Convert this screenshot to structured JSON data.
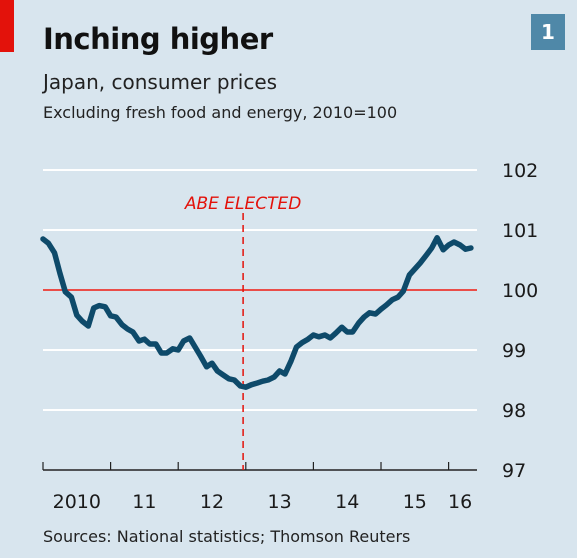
{
  "header": {
    "title": "Inching higher",
    "subtitle": "Japan, consumer prices",
    "subtitle2": "Excluding fresh food and energy, 2010=100",
    "badge": "1"
  },
  "footer": {
    "source": "Sources: National statistics; Thomson Reuters"
  },
  "colors": {
    "background": "#d8e5ee",
    "line": "#0e4a6a",
    "accent_red": "#e3120b",
    "badge": "#4f88a8",
    "grid": "#ffffff"
  },
  "chart_data": {
    "type": "line",
    "title": "Inching higher",
    "subtitle": "Japan, consumer prices",
    "ylabel": "Excluding fresh food and energy, 2010=100",
    "ylim": [
      97,
      102
    ],
    "xlim": [
      2010.0,
      2016.42
    ],
    "yticks": [
      "97",
      "98",
      "99",
      "100",
      "101",
      "102"
    ],
    "xticks": [
      {
        "label": "2010",
        "at": 2010.5
      },
      {
        "label": "11",
        "at": 2011.5
      },
      {
        "label": "12",
        "at": 2012.5
      },
      {
        "label": "13",
        "at": 2013.5
      },
      {
        "label": "14",
        "at": 2014.5
      },
      {
        "label": "15",
        "at": 2015.5
      },
      {
        "label": "16",
        "at": 2016.17
      }
    ],
    "reference_line": {
      "y": 100
    },
    "annotation": {
      "label": "ABE ELECTED",
      "x": 2012.96
    },
    "grid": true,
    "series": [
      {
        "x": [
          2010.0,
          2010.08,
          2010.17,
          2010.25,
          2010.33,
          2010.42,
          2010.5,
          2010.58,
          2010.67,
          2010.75,
          2010.83,
          2010.92,
          2011.0,
          2011.08,
          2011.17,
          2011.25,
          2011.33,
          2011.42,
          2011.5,
          2011.58,
          2011.67,
          2011.75,
          2011.83,
          2011.92,
          2012.0,
          2012.08,
          2012.17,
          2012.25,
          2012.33,
          2012.42,
          2012.5,
          2012.58,
          2012.67,
          2012.75,
          2012.83,
          2012.92,
          2013.0,
          2013.08,
          2013.17,
          2013.25,
          2013.33,
          2013.42,
          2013.5,
          2013.58,
          2013.67,
          2013.75,
          2013.83,
          2013.92,
          2014.0,
          2014.08,
          2014.17,
          2014.25,
          2014.33,
          2014.42,
          2014.5,
          2014.58,
          2014.67,
          2014.75,
          2014.83,
          2014.92,
          2015.0,
          2015.08,
          2015.17,
          2015.25,
          2015.33,
          2015.42,
          2015.5,
          2015.58,
          2015.67,
          2015.75,
          2015.83,
          2015.92,
          2016.0,
          2016.08,
          2016.17,
          2016.25,
          2016.33
        ],
        "values": [
          100.85,
          100.78,
          100.62,
          100.28,
          99.97,
          99.88,
          99.58,
          99.48,
          99.4,
          99.7,
          99.74,
          99.72,
          99.57,
          99.55,
          99.42,
          99.35,
          99.3,
          99.15,
          99.18,
          99.1,
          99.1,
          98.95,
          98.95,
          99.02,
          99.0,
          99.15,
          99.2,
          99.05,
          98.9,
          98.72,
          98.78,
          98.65,
          98.58,
          98.52,
          98.5,
          98.4,
          98.38,
          98.42,
          98.45,
          98.48,
          98.5,
          98.55,
          98.65,
          98.6,
          98.82,
          99.05,
          99.12,
          99.18,
          99.25,
          99.22,
          99.25,
          99.2,
          99.28,
          99.38,
          99.3,
          99.3,
          99.45,
          99.55,
          99.62,
          99.6,
          99.68,
          99.75,
          99.84,
          99.88,
          99.98,
          100.25,
          100.35,
          100.45,
          100.58,
          100.7,
          100.87,
          100.67,
          100.75,
          100.8,
          100.75,
          100.68,
          100.7
        ]
      }
    ]
  }
}
